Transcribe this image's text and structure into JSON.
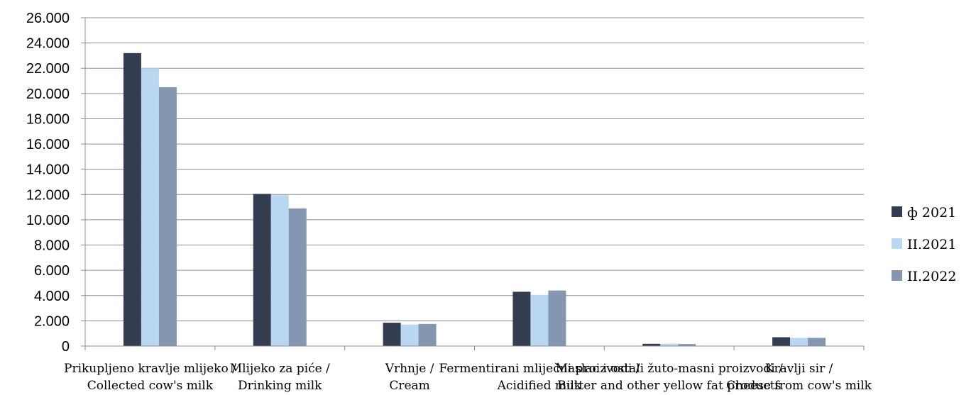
{
  "chart_data": {
    "type": "bar",
    "categories": [
      [
        "Prikupljeno kravlje mlijeko /",
        "Collected cow's milk"
      ],
      [
        "Mlijeko za piće /",
        "Drinking milk"
      ],
      [
        "Vrhnje /",
        "Cream"
      ],
      [
        "Fermentirani mliječni proizvodi /",
        "Acidified milk"
      ],
      [
        "Maslac i ostali žuto-masni proizvodi /",
        "Butter and other yellow fat products"
      ],
      [
        "Kravlji sir /",
        "Cheese from cow's milk"
      ]
    ],
    "series": [
      {
        "name": "ф 2021",
        "color": "#333d4f",
        "values": [
          23200,
          12050,
          1850,
          4300,
          180,
          700
        ]
      },
      {
        "name": "II.2021",
        "color": "#b9d7f1",
        "values": [
          22000,
          11950,
          1700,
          4050,
          190,
          650
        ]
      },
      {
        "name": "II.2022",
        "color": "#8496b0",
        "values": [
          20500,
          10900,
          1750,
          4400,
          160,
          650
        ]
      }
    ],
    "ylim": [
      0,
      26000
    ],
    "yticks": [
      "0",
      "2.000",
      "4.000",
      "6.000",
      "8.000",
      "10.000",
      "12.000",
      "14.000",
      "16.000",
      "18.000",
      "20.000",
      "22.000",
      "24.000",
      "26.000"
    ],
    "grid": true,
    "legend_position": "right"
  }
}
